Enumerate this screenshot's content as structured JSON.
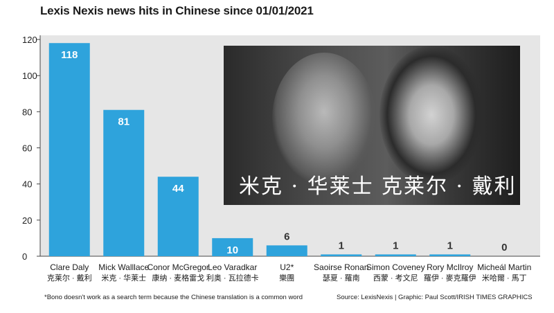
{
  "chart_data": {
    "type": "bar",
    "title": "Lexis Nexis news hits in Chinese since 01/01/2021",
    "categories": [
      "Clare Daly",
      "Mick Walllace",
      "Conor McGregor",
      "Leo Varadkar",
      "U2*",
      "Saoirse Ronan",
      "Simon Coveney",
      "Rory McIlroy",
      "Micheál Martin"
    ],
    "categories_zh": [
      "克莱尔 · 戴利",
      "米克 · 华莱士",
      "康纳 · 麦格雷戈",
      "利奥 · 瓦拉德卡",
      "樂團",
      "瑟夏 · 羅南",
      "西蒙 · 考文尼",
      "羅伊 · 麥克羅伊",
      "米哈爾 · 馬丁"
    ],
    "values": [
      118,
      81,
      44,
      10,
      6,
      1,
      1,
      1,
      0
    ],
    "ylim": [
      0,
      120
    ],
    "yticks": [
      0,
      20,
      40,
      60,
      80,
      100,
      120
    ],
    "xlabel": "",
    "ylabel": "",
    "grid": false
  },
  "colors": {
    "bar": "#2ea3dc",
    "plot_bg": "#e6e6e6",
    "value_on_bar": "#ffffff",
    "value_above_bar": "#333333"
  },
  "photo": {
    "captions": [
      "米克 · 华莱士",
      "克莱尔 · 戴利"
    ]
  },
  "footnote": "*Bono doesn't work as a search term because the Chinese translation is a common word",
  "source": "Source: LexisNexis  |  Graphic: Paul Scott/IRISH TIMES GRAPHICS"
}
